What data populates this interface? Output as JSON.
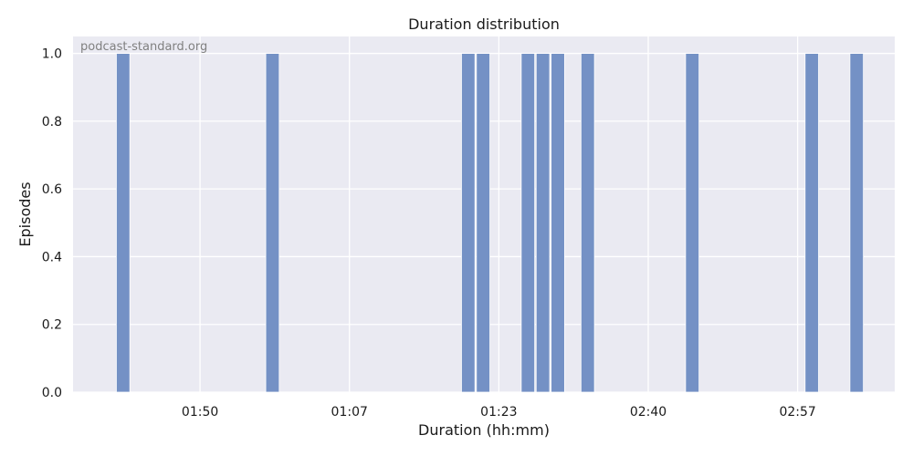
{
  "chart_data": {
    "type": "bar",
    "title": "Duration distribution",
    "xlabel": "Duration (hh:mm)",
    "ylabel": "Episodes",
    "watermark": "podcast-standard.org",
    "ylim": [
      0,
      1.05
    ],
    "yticks": [
      "0.0",
      "0.2",
      "0.4",
      "0.6",
      "0.8",
      "1.0"
    ],
    "ytick_values": [
      0,
      0.2,
      0.4,
      0.6,
      0.8,
      1.0
    ],
    "xlim": [
      0,
      11
    ],
    "xtick_positions": [
      1.7,
      3.7,
      5.7,
      7.7,
      9.7
    ],
    "xtick_labels": [
      "01:50",
      "01:07",
      "01:23",
      "02:40",
      "02:57"
    ],
    "bar_width": 0.18,
    "bar_x": [
      0.58,
      2.58,
      5.2,
      5.4,
      6.0,
      6.2,
      6.4,
      6.8,
      8.2,
      9.8,
      10.4
    ],
    "values": [
      1,
      1,
      1,
      1,
      1,
      1,
      1,
      1,
      1,
      1,
      1
    ],
    "grid": true,
    "bar_color": "#7491c5",
    "background": "#eaeaf2"
  }
}
